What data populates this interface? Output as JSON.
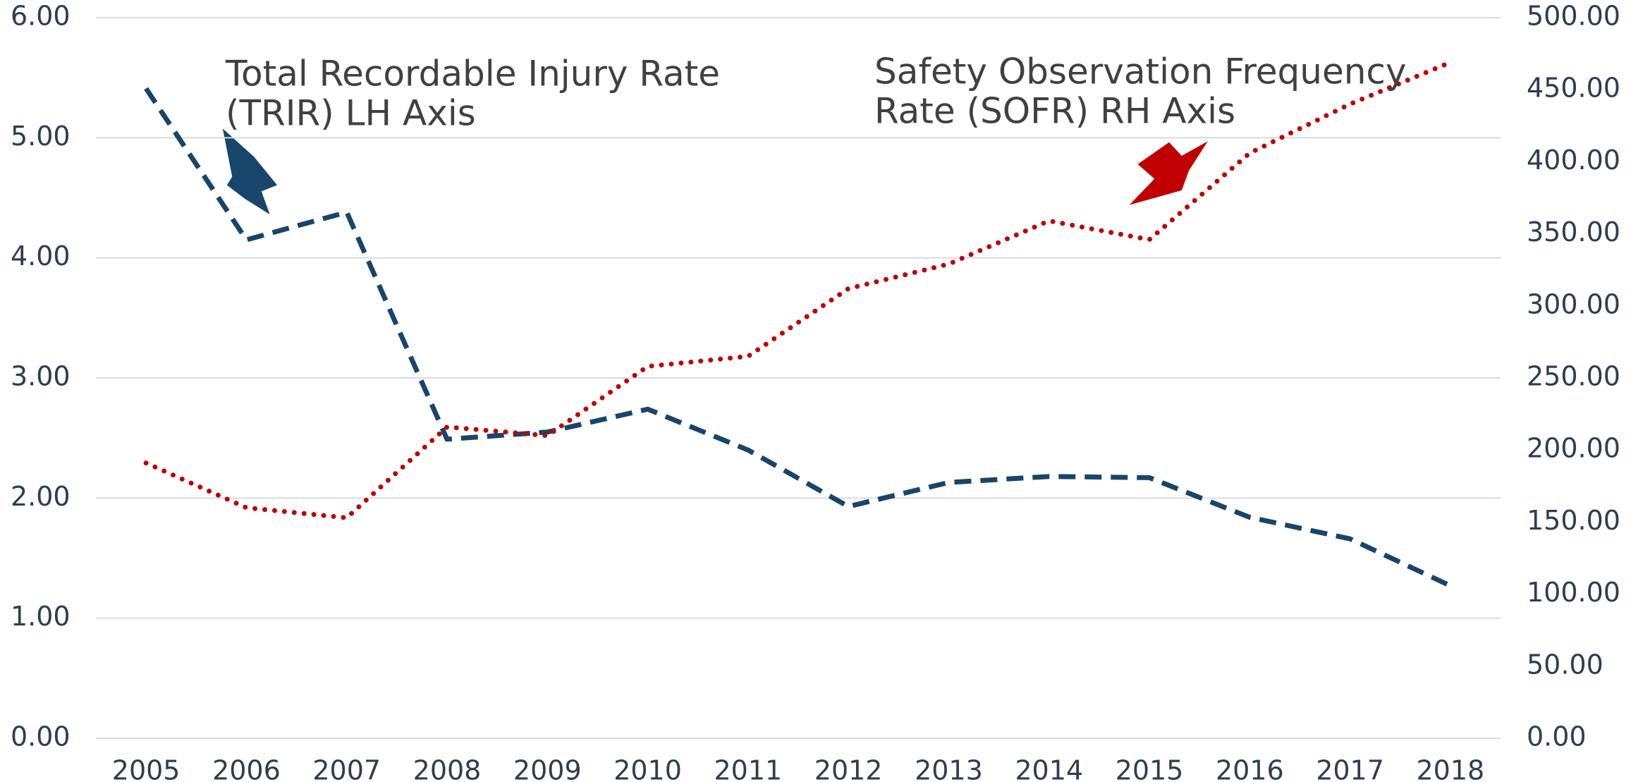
{
  "chart_data": {
    "type": "line",
    "categories": [
      "2005",
      "2006",
      "2007",
      "2008",
      "2009",
      "2010",
      "2011",
      "2012",
      "2013",
      "2014",
      "2015",
      "2016",
      "2017",
      "2018"
    ],
    "series": [
      {
        "color": "#17456b",
        "style": "dashed",
        "values": [
          5.41,
          4.15,
          4.38,
          2.49,
          2.55,
          2.74,
          2.4,
          1.93,
          2.13,
          2.18,
          2.17,
          1.84,
          1.66,
          1.27
        ]
      },
      {
        "color": "#c00000",
        "style": "dotted",
        "axis": "y2",
        "values": [
          191,
          160,
          153,
          216,
          210,
          258,
          265,
          312,
          329,
          359,
          346,
          406,
          440,
          469
        ]
      }
    ],
    "ylim": [
      0,
      6
    ],
    "yticks": [
      {
        "value": 0,
        "label": "0.00"
      },
      {
        "value": 1,
        "label": "1.00"
      },
      {
        "value": 2,
        "label": "2.00"
      },
      {
        "value": 3,
        "label": "3.00"
      },
      {
        "value": 4,
        "label": "4.00"
      },
      {
        "value": 5,
        "label": "5.00"
      },
      {
        "value": 6,
        "label": "6.00"
      }
    ],
    "y2lim": [
      0,
      500
    ],
    "y2ticks": [
      {
        "value": 0,
        "label": "0.00"
      },
      {
        "value": 50,
        "label": "50.00"
      },
      {
        "value": 100,
        "label": "100.00"
      },
      {
        "value": 150,
        "label": "150.00"
      },
      {
        "value": 200,
        "label": "200.00"
      },
      {
        "value": 250,
        "label": "250.00"
      },
      {
        "value": 300,
        "label": "300.00"
      },
      {
        "value": 350,
        "label": "350.00"
      },
      {
        "value": 400,
        "label": "400.00"
      },
      {
        "value": 450,
        "label": "450.00"
      },
      {
        "value": 500,
        "label": "500.00"
      }
    ],
    "grid": true,
    "annotations": [
      {
        "lines": [
          "Total Recordable Injury Rate",
          "(TRIR) LH Axis"
        ]
      },
      {
        "lines": [
          "Safety Observation Frequency",
          "Rate (SOFR) RH Axis"
        ]
      }
    ]
  }
}
